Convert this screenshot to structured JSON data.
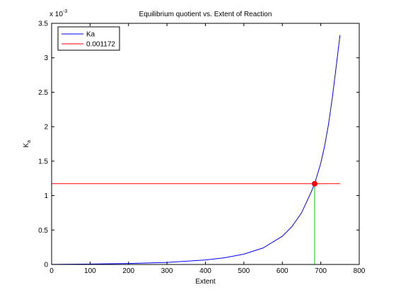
{
  "chart_data": {
    "type": "line",
    "title": "Equilibrium quotient vs. Extent of Reaction",
    "xlabel": "Extent",
    "ylabel": "K",
    "ylabel_subscript": "a",
    "y_exponent_label": "x 10",
    "y_exponent_power": "-3",
    "xlim": [
      0,
      800
    ],
    "ylim": [
      0,
      3.5
    ],
    "x_ticks": [
      0,
      100,
      200,
      300,
      400,
      500,
      600,
      700,
      800
    ],
    "y_ticks": [
      0,
      0.5,
      1,
      1.5,
      2,
      2.5,
      3,
      3.5
    ],
    "x_tick_labels": [
      "0",
      "100",
      "200",
      "300",
      "400",
      "500",
      "600",
      "700",
      "800"
    ],
    "y_tick_labels": [
      "0",
      "0.5",
      "1",
      "1.5",
      "2",
      "2.5",
      "3",
      "3.5"
    ],
    "grid": false,
    "legend_position": "top-left",
    "series": [
      {
        "name": "Ka",
        "color": "#0000ff",
        "x": [
          0,
          100,
          200,
          300,
          400,
          450,
          500,
          550,
          600,
          625,
          650,
          675,
          685,
          700,
          710,
          720,
          730,
          740,
          750
        ],
        "y": [
          0.0015,
          0.006,
          0.014,
          0.03,
          0.065,
          0.098,
          0.15,
          0.24,
          0.41,
          0.55,
          0.75,
          1.05,
          1.19,
          1.47,
          1.72,
          2.03,
          2.42,
          2.87,
          3.33
        ]
      },
      {
        "name": "0.001172",
        "color": "#ff0000",
        "x": [
          0,
          750
        ],
        "y": [
          1.172,
          1.172
        ]
      }
    ],
    "annotations": [
      {
        "kind": "intersection-marker",
        "color": "#ff0000",
        "x": 684,
        "y": 1.172
      },
      {
        "kind": "vertical-drop-line",
        "color": "#00cc00",
        "x": 684,
        "y_from": 0,
        "y_to": 1.172
      }
    ]
  }
}
